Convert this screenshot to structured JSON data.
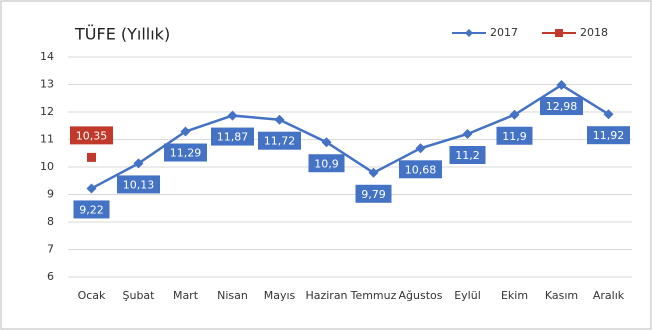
{
  "chart_data": {
    "type": "line",
    "title": "TÜFE (Yıllık)",
    "categories": [
      "Ocak",
      "Şubat",
      "Mart",
      "Nisan",
      "Mayıs",
      "Haziran",
      "Temmuz",
      "Ağustos",
      "Eylül",
      "Ekim",
      "Kasım",
      "Aralık"
    ],
    "series": [
      {
        "name": "2017",
        "color": "#4472c4",
        "values": [
          9.22,
          10.13,
          11.29,
          11.87,
          11.72,
          10.9,
          9.79,
          10.68,
          11.2,
          11.9,
          12.98,
          11.92
        ],
        "value_labels": [
          "9,22",
          "10,13",
          "11,29",
          "11,87",
          "11,72",
          "10,9",
          "9,79",
          "10,68",
          "11,2",
          "11,9",
          "12,98",
          "11,92"
        ]
      },
      {
        "name": "2018",
        "color": "#c0392b",
        "values": [
          10.35,
          null,
          null,
          null,
          null,
          null,
          null,
          null,
          null,
          null,
          null,
          null
        ],
        "value_labels": [
          "10,35",
          null,
          null,
          null,
          null,
          null,
          null,
          null,
          null,
          null,
          null,
          null
        ]
      }
    ],
    "ylim": [
      6,
      14
    ],
    "yticks": [
      6,
      7,
      8,
      9,
      10,
      11,
      12,
      13,
      14
    ],
    "grid": true,
    "legend": "top-right"
  }
}
